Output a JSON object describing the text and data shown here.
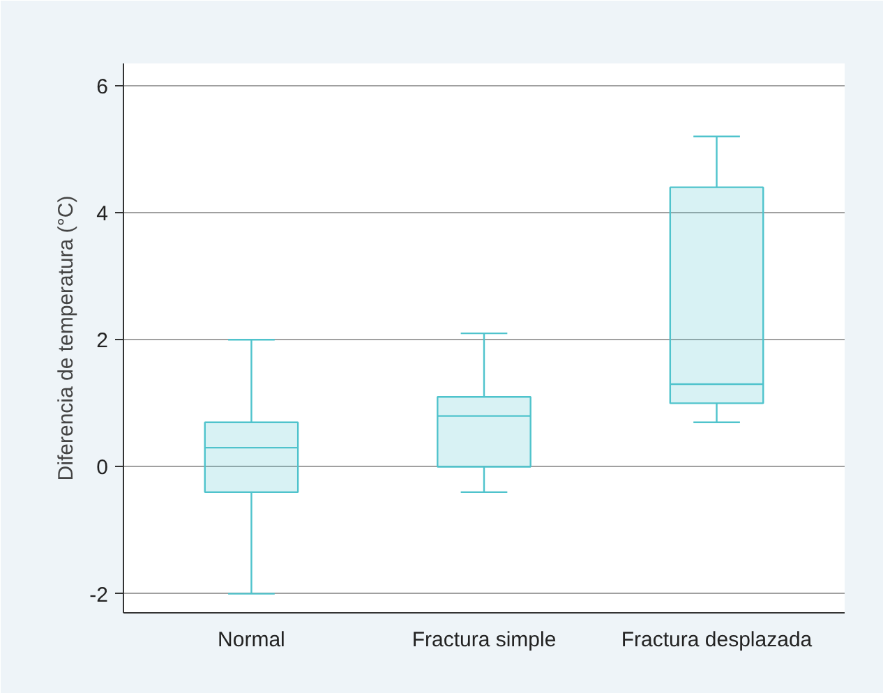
{
  "chart_data": {
    "type": "box",
    "ylabel": "Diferencia de temperatura (°C)",
    "categories": [
      "Normal",
      "Fractura simple",
      "Fractura desplazada"
    ],
    "boxes": [
      {
        "low": -2.0,
        "q1": -0.4,
        "median": 0.3,
        "q3": 0.7,
        "high": 2.0
      },
      {
        "low": -0.4,
        "q1": 0.0,
        "median": 0.8,
        "q3": 1.1,
        "high": 2.1
      },
      {
        "low": 0.7,
        "q1": 1.0,
        "median": 1.3,
        "q3": 4.4,
        "high": 5.2
      }
    ],
    "color": "#4fc3cc",
    "ylim": [
      -2.3,
      6.35
    ],
    "yticks": [
      {
        "value": -2,
        "label": "-2"
      },
      0,
      2,
      4,
      6
    ],
    "grid": "y"
  }
}
